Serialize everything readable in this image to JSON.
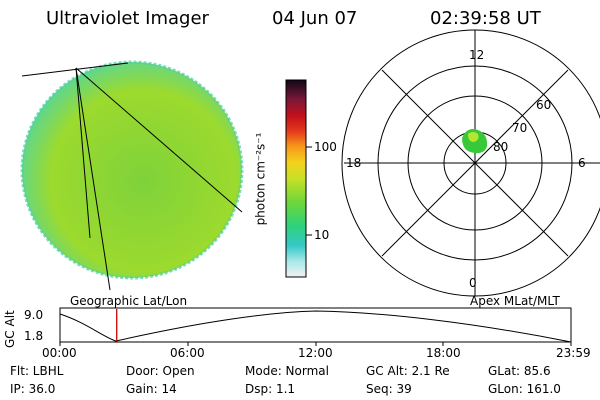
{
  "header": {
    "instrument": "Ultraviolet Imager",
    "date": "04 Jun 07",
    "time": "02:39:58 UT"
  },
  "colorbar": {
    "unit_label": "photon cm⁻²s⁻¹",
    "tick_labels": [
      "100",
      "10"
    ]
  },
  "polar_plot": {
    "mlt_labels": {
      "top": "12",
      "right": "6",
      "bottom": "0",
      "left": "18"
    },
    "lat_labels": [
      "60",
      "70",
      "80"
    ]
  },
  "timeline": {
    "y_label": "GC Alt",
    "y_ticks": [
      "9.0",
      "1.8"
    ],
    "left_title": "Geographic Lat/Lon",
    "right_title": "Apex MLat/MLT",
    "x_ticks": [
      "00:00",
      "06:00",
      "12:00",
      "18:00",
      "23:59"
    ],
    "current_time_fraction": 0.111
  },
  "status": {
    "row1": {
      "flt": "Flt: LBHL",
      "door": "Door: Open",
      "mode": "Mode: Normal",
      "gc_alt": "GC Alt: 2.1 Re",
      "glat": "GLat:  85.6"
    },
    "row2": {
      "ip": "IP: 36.0",
      "gain": "Gain: 14",
      "dsp": "Dsp:     1.1",
      "seq": "Seq: 39",
      "glon": "GLon: 161.0"
    }
  },
  "colors": {
    "disk_fill": "#8fd631",
    "aurora_spot": "#37c93a",
    "marker": "#cc0000"
  }
}
